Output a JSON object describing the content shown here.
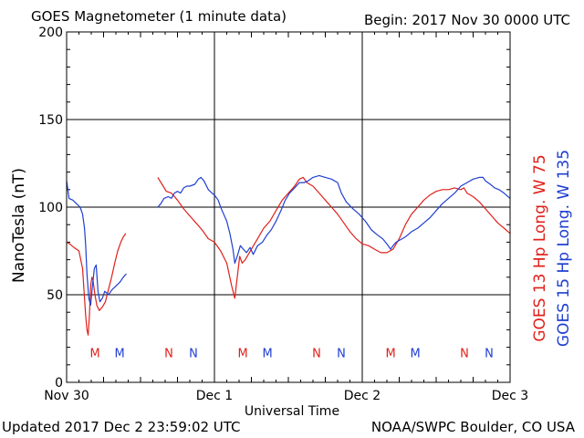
{
  "header": {
    "title": "GOES Magnetometer (1 minute data)",
    "begin": "Begin:  2017 Nov 30 0000 UTC"
  },
  "footer": {
    "updated": "Updated 2017 Dec  2 23:59:02 UTC",
    "source": "NOAA/SWPC Boulder, CO USA"
  },
  "colors": {
    "red": "#e0201b",
    "blue": "#1f3fd1",
    "grid": "#000000"
  },
  "chart_data": {
    "type": "line",
    "title": "GOES Magnetometer (1 minute data)",
    "xlabel": "Universal Time",
    "ylabel": "NanoTesla (nT)",
    "xlim": [
      0,
      72
    ],
    "ylim": [
      0,
      200
    ],
    "x_unit": "hours since 2017 Nov 30 0000 UTC",
    "grid": true,
    "y_ticks": [
      0,
      50,
      100,
      150,
      200
    ],
    "x_ticks": [
      {
        "x": 0,
        "label": "Nov 30"
      },
      {
        "x": 24,
        "label": "Dec 1"
      },
      {
        "x": 48,
        "label": "Dec 2"
      },
      {
        "x": 72,
        "label": "Dec 3"
      }
    ],
    "series": [
      {
        "name": "GOES 13 Hp  Long. W 75",
        "color": "#e0201b",
        "segments": [
          [
            [
              0,
              80
            ],
            [
              0.5,
              79
            ],
            [
              1.2,
              77
            ],
            [
              2,
              75
            ],
            [
              2.6,
              65
            ],
            [
              2.9,
              48
            ],
            [
              3.1,
              38
            ],
            [
              3.3,
              30
            ],
            [
              3.5,
              27
            ],
            [
              3.7,
              38
            ],
            [
              3.9,
              55
            ],
            [
              4.1,
              60
            ],
            [
              4.3,
              58
            ],
            [
              4.6,
              50
            ],
            [
              4.9,
              44
            ],
            [
              5.3,
              41
            ],
            [
              5.8,
              43
            ],
            [
              6.3,
              46
            ],
            [
              6.8,
              53
            ],
            [
              7.3,
              60
            ],
            [
              7.8,
              68
            ],
            [
              8.3,
              75
            ],
            [
              8.8,
              80
            ],
            [
              9.2,
              83
            ],
            [
              9.6,
              85
            ]
          ],
          [
            [
              14.8,
              117
            ],
            [
              15.5,
              113
            ],
            [
              16.2,
              109
            ],
            [
              17,
              108
            ],
            [
              18,
              104
            ],
            [
              19,
              99
            ],
            [
              20,
              95
            ],
            [
              21,
              91
            ],
            [
              22,
              87
            ],
            [
              23,
              82
            ],
            [
              24,
              80
            ],
            [
              25,
              75
            ],
            [
              26,
              68
            ],
            [
              26.8,
              55
            ],
            [
              27.3,
              48
            ],
            [
              27.7,
              60
            ],
            [
              28.1,
              72
            ],
            [
              28.5,
              68
            ],
            [
              29,
              70
            ],
            [
              30,
              76
            ],
            [
              31,
              82
            ],
            [
              32,
              88
            ],
            [
              33,
              92
            ],
            [
              34,
              98
            ],
            [
              35,
              104
            ],
            [
              36,
              108
            ],
            [
              37,
              112
            ],
            [
              37.8,
              116
            ],
            [
              38.4,
              117
            ],
            [
              39,
              114
            ],
            [
              40,
              112
            ],
            [
              41,
              108
            ],
            [
              42,
              104
            ],
            [
              43,
              100
            ],
            [
              44,
              96
            ],
            [
              45,
              91
            ],
            [
              46,
              86
            ],
            [
              47,
              82
            ],
            [
              48,
              79
            ],
            [
              49,
              78
            ],
            [
              50,
              76
            ],
            [
              51,
              74
            ],
            [
              52,
              74
            ],
            [
              53,
              76
            ],
            [
              54,
              82
            ],
            [
              55,
              90
            ],
            [
              56,
              96
            ],
            [
              57,
              100
            ],
            [
              58,
              104
            ],
            [
              59,
              107
            ],
            [
              60,
              109
            ],
            [
              61,
              110
            ],
            [
              62,
              110
            ],
            [
              63,
              111
            ],
            [
              64,
              110
            ],
            [
              64.5,
              111
            ],
            [
              65,
              108
            ],
            [
              66,
              106
            ],
            [
              67,
              103
            ],
            [
              68,
              99
            ],
            [
              69,
              95
            ],
            [
              70,
              91
            ],
            [
              71,
              88
            ],
            [
              72,
              85
            ]
          ]
        ]
      },
      {
        "name": "GOES 15 Hp  Long. W 135",
        "color": "#1f3fd1",
        "segments": [
          [
            [
              0,
              115
            ],
            [
              0.4,
              105
            ],
            [
              1,
              104
            ],
            [
              1.6,
              102
            ],
            [
              2.2,
              100
            ],
            [
              2.6,
              96
            ],
            [
              2.9,
              88
            ],
            [
              3.1,
              78
            ],
            [
              3.3,
              62
            ],
            [
              3.6,
              48
            ],
            [
              3.9,
              44
            ],
            [
              4.2,
              55
            ],
            [
              4.5,
              65
            ],
            [
              4.8,
              67
            ],
            [
              5.1,
              52
            ],
            [
              5.4,
              46
            ],
            [
              5.8,
              48
            ],
            [
              6.2,
              52
            ],
            [
              6.8,
              50
            ],
            [
              7.4,
              53
            ],
            [
              8,
              55
            ],
            [
              8.6,
              57
            ],
            [
              9.2,
              60
            ],
            [
              9.7,
              62
            ]
          ],
          [
            [
              14.8,
              100
            ],
            [
              15.3,
              102
            ],
            [
              15.8,
              105
            ],
            [
              16.5,
              106
            ],
            [
              17,
              105
            ],
            [
              17.5,
              108
            ],
            [
              18,
              109
            ],
            [
              18.5,
              108
            ],
            [
              19,
              111
            ],
            [
              19.5,
              112
            ],
            [
              20,
              112
            ],
            [
              20.8,
              113
            ],
            [
              21.4,
              116
            ],
            [
              21.8,
              117
            ],
            [
              22.3,
              115
            ],
            [
              23,
              110
            ],
            [
              23.6,
              108
            ],
            [
              24,
              107
            ],
            [
              24.6,
              104
            ],
            [
              25,
              100
            ],
            [
              25.5,
              96
            ],
            [
              26,
              92
            ],
            [
              26.5,
              85
            ],
            [
              27,
              76
            ],
            [
              27.3,
              68
            ],
            [
              27.7,
              72
            ],
            [
              28.2,
              78
            ],
            [
              28.7,
              76
            ],
            [
              29.2,
              74
            ],
            [
              29.8,
              77
            ],
            [
              30.3,
              73
            ],
            [
              31,
              78
            ],
            [
              31.8,
              80
            ],
            [
              32.5,
              84
            ],
            [
              33.2,
              87
            ],
            [
              34,
              92
            ],
            [
              34.8,
              98
            ],
            [
              35.5,
              104
            ],
            [
              36.2,
              108
            ],
            [
              37,
              111
            ],
            [
              37.8,
              114
            ],
            [
              38.6,
              114
            ],
            [
              39.2,
              115
            ],
            [
              40,
              117
            ],
            [
              41,
              118
            ],
            [
              42,
              117
            ],
            [
              43,
              116
            ],
            [
              44,
              114
            ],
            [
              44.6,
              108
            ],
            [
              45.4,
              103
            ],
            [
              46.5,
              99
            ],
            [
              47.5,
              96
            ],
            [
              48.5,
              92
            ],
            [
              49.5,
              87
            ],
            [
              50.5,
              84
            ],
            [
              51.3,
              82
            ],
            [
              52,
              79
            ],
            [
              52.6,
              76
            ],
            [
              53,
              78
            ],
            [
              53.5,
              80
            ],
            [
              54,
              81
            ],
            [
              55,
              83
            ],
            [
              56,
              86
            ],
            [
              57,
              88
            ],
            [
              58,
              91
            ],
            [
              59,
              94
            ],
            [
              60,
              98
            ],
            [
              61,
              102
            ],
            [
              62,
              105
            ],
            [
              63,
              108
            ],
            [
              64,
              112
            ],
            [
              65,
              114
            ],
            [
              66,
              116
            ],
            [
              67,
              117
            ],
            [
              67.6,
              117
            ],
            [
              68,
              115
            ],
            [
              68.8,
              113
            ],
            [
              69.5,
              111
            ],
            [
              70.2,
              110
            ],
            [
              71,
              108
            ],
            [
              72,
              105
            ]
          ]
        ]
      }
    ],
    "markers": [
      {
        "x": 4.6,
        "label": "M",
        "series": 0
      },
      {
        "x": 8.6,
        "label": "M",
        "series": 1
      },
      {
        "x": 16.6,
        "label": "N",
        "series": 0
      },
      {
        "x": 20.6,
        "label": "N",
        "series": 1
      },
      {
        "x": 28.6,
        "label": "M",
        "series": 0
      },
      {
        "x": 32.6,
        "label": "M",
        "series": 1
      },
      {
        "x": 40.6,
        "label": "N",
        "series": 0
      },
      {
        "x": 44.6,
        "label": "N",
        "series": 1
      },
      {
        "x": 52.6,
        "label": "M",
        "series": 0
      },
      {
        "x": 56.6,
        "label": "M",
        "series": 1
      },
      {
        "x": 64.6,
        "label": "N",
        "series": 0
      },
      {
        "x": 68.6,
        "label": "N",
        "series": 1
      }
    ],
    "marker_y": 17
  }
}
